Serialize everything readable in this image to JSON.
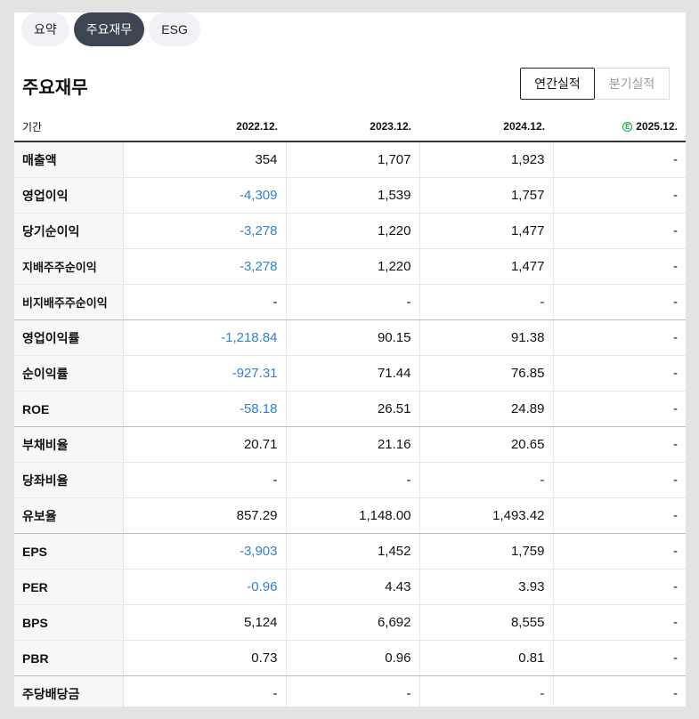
{
  "tabs": [
    "요약",
    "주요재무",
    "ESG"
  ],
  "active_tab": 1,
  "heading": "주요재무",
  "toggle": {
    "annual": "연간실적",
    "quarterly": "분기실적"
  },
  "colors": {
    "negative": "#2f7fd8",
    "active_tab": "#3d4552",
    "estimate_badge": "#17a34a"
  },
  "table": {
    "header_label": "기간",
    "columns": [
      "2022.12.",
      "2023.12.",
      "2024.12.",
      "2025.12."
    ],
    "estimate_badge": "E",
    "rows": [
      {
        "label": "매출액",
        "values": [
          "354",
          "1,707",
          "1,923",
          "-"
        ]
      },
      {
        "label": "영업이익",
        "values": [
          "-4,309",
          "1,539",
          "1,757",
          "-"
        ]
      },
      {
        "label": "당기순이익",
        "values": [
          "-3,278",
          "1,220",
          "1,477",
          "-"
        ]
      },
      {
        "label": "지배주주순이익",
        "values": [
          "-3,278",
          "1,220",
          "1,477",
          "-"
        ]
      },
      {
        "label": "비지배주주순이익",
        "values": [
          "-",
          "-",
          "-",
          "-"
        ]
      },
      {
        "label": "영업이익률",
        "values": [
          "-1,218.84",
          "90.15",
          "91.38",
          "-"
        ]
      },
      {
        "label": "순이익률",
        "values": [
          "-927.31",
          "71.44",
          "76.85",
          "-"
        ]
      },
      {
        "label": "ROE",
        "values": [
          "-58.18",
          "26.51",
          "24.89",
          "-"
        ]
      },
      {
        "label": "부채비율",
        "values": [
          "20.71",
          "21.16",
          "20.65",
          "-"
        ]
      },
      {
        "label": "당좌비율",
        "values": [
          "-",
          "-",
          "-",
          "-"
        ]
      },
      {
        "label": "유보율",
        "values": [
          "857.29",
          "1,148.00",
          "1,493.42",
          "-"
        ]
      },
      {
        "label": "EPS",
        "values": [
          "-3,903",
          "1,452",
          "1,759",
          "-"
        ]
      },
      {
        "label": "PER",
        "values": [
          "-0.96",
          "4.43",
          "3.93",
          "-"
        ]
      },
      {
        "label": "BPS",
        "values": [
          "5,124",
          "6,692",
          "8,555",
          "-"
        ]
      },
      {
        "label": "PBR",
        "values": [
          "0.73",
          "0.96",
          "0.81",
          "-"
        ]
      },
      {
        "label": "주당배당금",
        "values": [
          "-",
          "-",
          "-",
          "-"
        ]
      }
    ]
  }
}
